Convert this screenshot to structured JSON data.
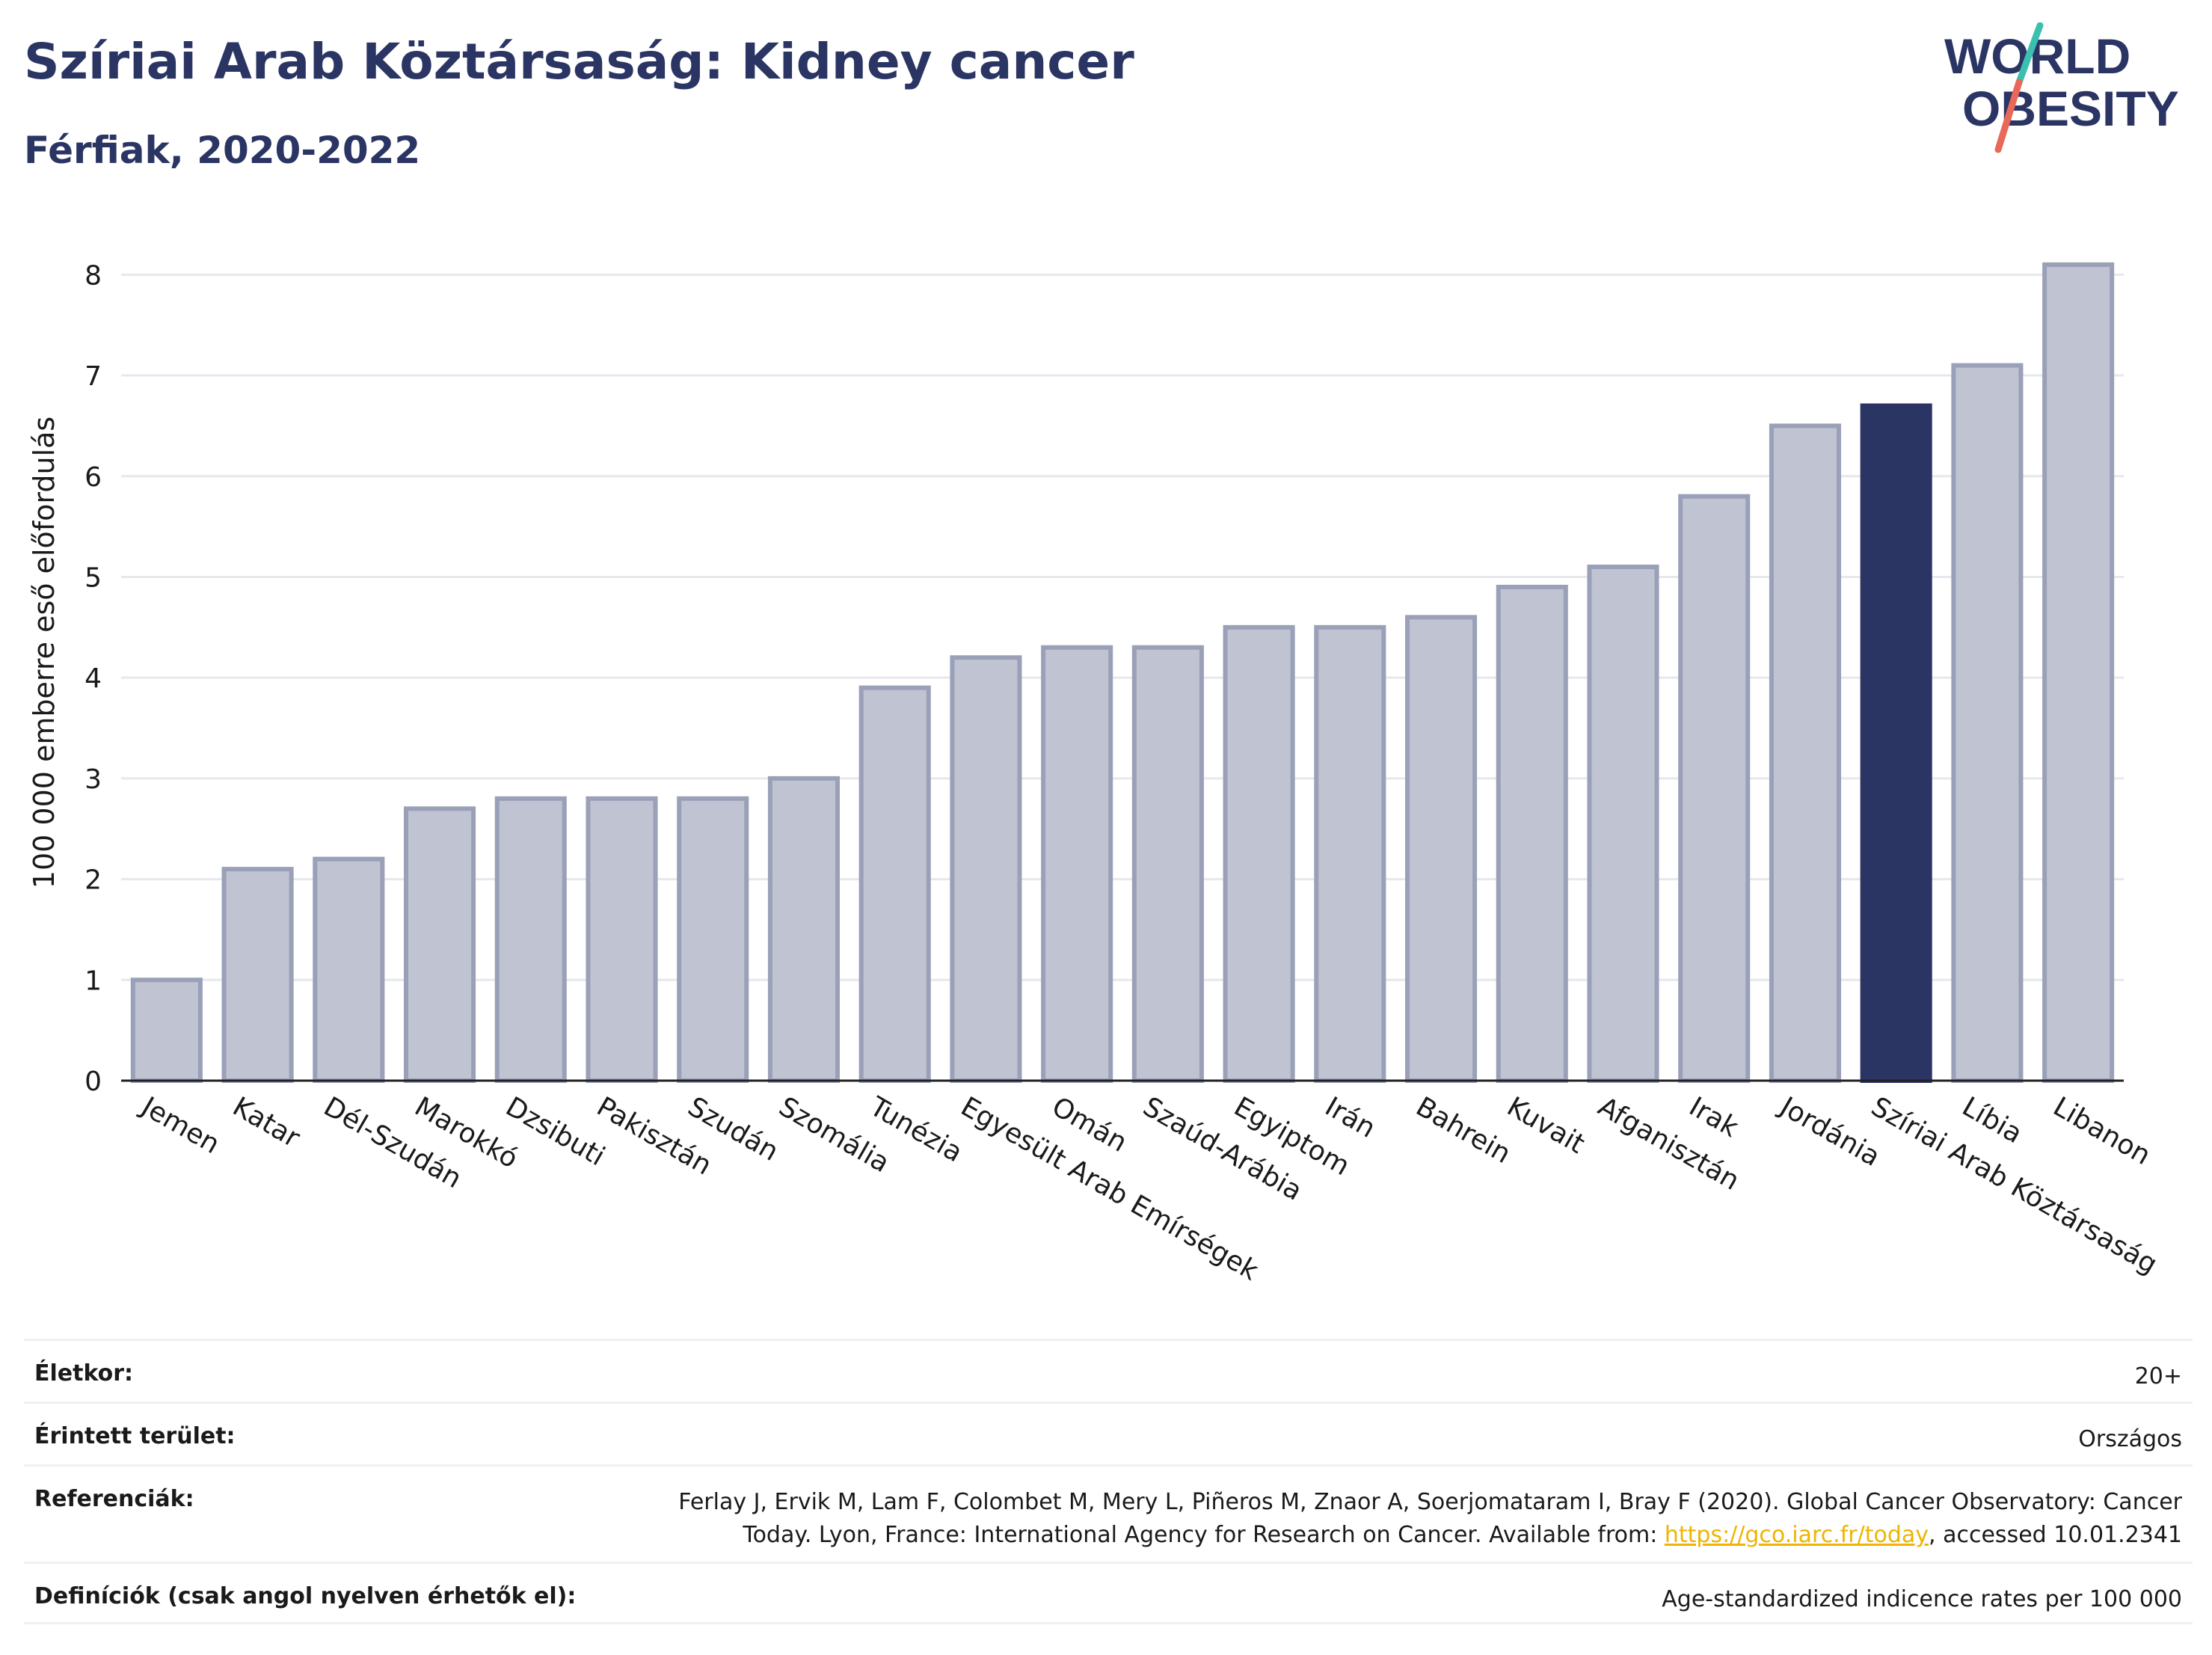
{
  "header": {
    "title": "Szíriai Arab Köztársaság: Kidney cancer",
    "subtitle": "Férfiak, 2020-2022"
  },
  "logo": {
    "line1": "WORLD",
    "line2": "OBESITY",
    "slash_colors": [
      "#3cbfae",
      "#e8685a"
    ]
  },
  "chart_data": {
    "type": "bar",
    "title": "",
    "xlabel": "",
    "ylabel": "100 000 emberre eső előfordulás",
    "ylim": [
      0,
      8.5
    ],
    "yticks": [
      0,
      1,
      2,
      3,
      4,
      5,
      6,
      7,
      8
    ],
    "grid": true,
    "highlight": "Szíriai Arab Köztársaság",
    "colors": {
      "bar": "#c0c3d1",
      "bar_border": "#9aa0b8",
      "highlight": "#2b3563",
      "grid": "#e6e8ee"
    },
    "categories": [
      "Jemen",
      "Katar",
      "Dél-Szudán",
      "Marokkó",
      "Dzsibuti",
      "Pakisztán",
      "Szudán",
      "Szomália",
      "Tunézia",
      "Egyesült Arab Emírségek",
      "Omán",
      "Szaúd-Arábia",
      "Egyiptom",
      "Irán",
      "Bahrein",
      "Kuvait",
      "Afganisztán",
      "Irak",
      "Jordánia",
      "Szíriai Arab Köztársaság",
      "Líbia",
      "Libanon"
    ],
    "values": [
      1.0,
      2.1,
      2.2,
      2.7,
      2.8,
      2.8,
      2.8,
      3.0,
      3.9,
      4.2,
      4.3,
      4.3,
      4.5,
      4.5,
      4.6,
      4.9,
      5.1,
      5.8,
      6.5,
      6.7,
      7.1,
      8.1
    ]
  },
  "info": {
    "age_label": "Életkor:",
    "age_value": "20+",
    "area_label": "Érintett terület:",
    "area_value": "Országos",
    "ref_label": "Referenciák:",
    "ref_text_1": "Ferlay J, Ervik M, Lam F, Colombet M, Mery L, Piñeros M, Znaor A, Soerjomataram I, Bray F (2020). Global Cancer Observatory: Cancer",
    "ref_text_2": "Today. Lyon, France: International Agency for Research on Cancer. Available from: ",
    "ref_link": "https://gco.iarc.fr/today",
    "ref_text_3": ", accessed 10.01.2341",
    "def_label": "Definíciók (csak angol nyelven érhetők el):",
    "def_value": "Age-standardized indicence rates per 100 000"
  }
}
